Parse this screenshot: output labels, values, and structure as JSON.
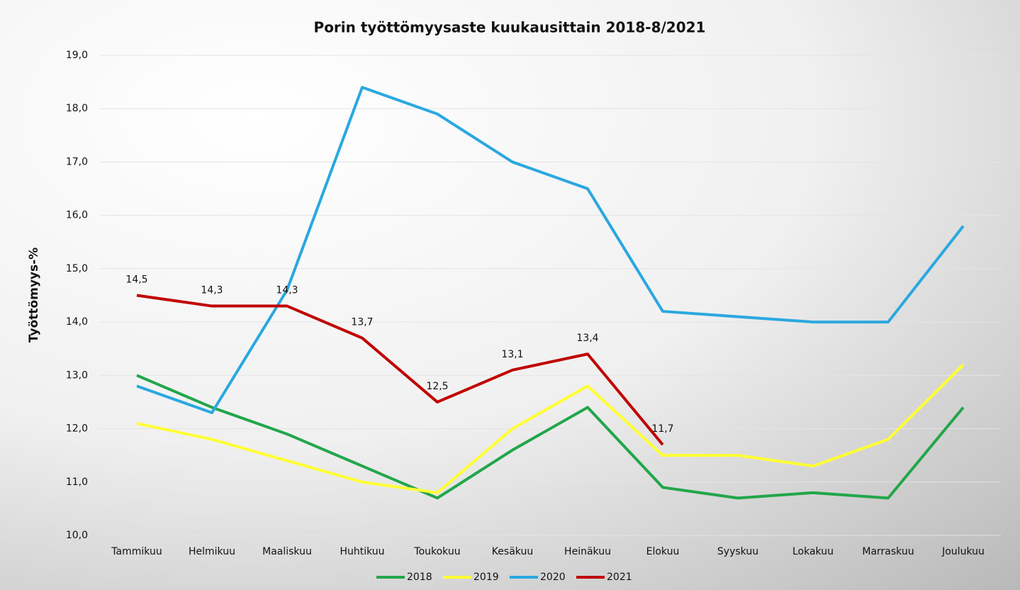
{
  "chart_data": {
    "type": "line",
    "title": "Porin työttömyysaste kuukausittain 2018-8/2021",
    "ylabel": "Työttömyys-%",
    "categories": [
      "Tammikuu",
      "Helmikuu",
      "Maaliskuu",
      "Huhtikuu",
      "Toukokuu",
      "Kesäkuu",
      "Heinäkuu",
      "Elokuu",
      "Syyskuu",
      "Lokakuu",
      "Marraskuu",
      "Joulukuu"
    ],
    "series": [
      {
        "name": "2018",
        "color": "#22a64a",
        "values": [
          13.0,
          12.4,
          11.9,
          11.3,
          10.7,
          11.6,
          12.4,
          10.9,
          10.7,
          10.8,
          10.7,
          12.4
        ]
      },
      {
        "name": "2019",
        "color": "#ffff33",
        "values": [
          12.1,
          11.8,
          11.4,
          11.0,
          10.8,
          12.0,
          12.8,
          11.5,
          11.5,
          11.3,
          11.8,
          13.2
        ]
      },
      {
        "name": "2020",
        "color": "#2aa8e0",
        "values": [
          12.8,
          12.3,
          14.6,
          18.4,
          17.9,
          17.0,
          16.5,
          14.2,
          14.1,
          14.0,
          14.0,
          15.8
        ]
      },
      {
        "name": "2021",
        "color": "#c00000",
        "values": [
          14.5,
          14.3,
          14.3,
          13.7,
          12.5,
          13.1,
          13.4,
          11.7,
          null,
          null,
          null,
          null
        ],
        "value_labels": [
          "14,5",
          "14,3",
          "14,3",
          "13,7",
          "12,5",
          "13,1",
          "13,4",
          "11,7",
          null,
          null,
          null,
          null
        ]
      }
    ],
    "ylim": [
      10,
      19
    ],
    "yticks": [
      {
        "value": 10,
        "label": "10,0"
      },
      {
        "value": 11,
        "label": "11,0"
      },
      {
        "value": 12,
        "label": "12,0"
      },
      {
        "value": 13,
        "label": "13,0"
      },
      {
        "value": 14,
        "label": "14,0"
      },
      {
        "value": 15,
        "label": "15,0"
      },
      {
        "value": 16,
        "label": "16,0"
      },
      {
        "value": 17,
        "label": "17,0"
      },
      {
        "value": 18,
        "label": "18,0"
      },
      {
        "value": 19,
        "label": "19,0"
      }
    ],
    "grid": true,
    "legend": "bottom"
  }
}
